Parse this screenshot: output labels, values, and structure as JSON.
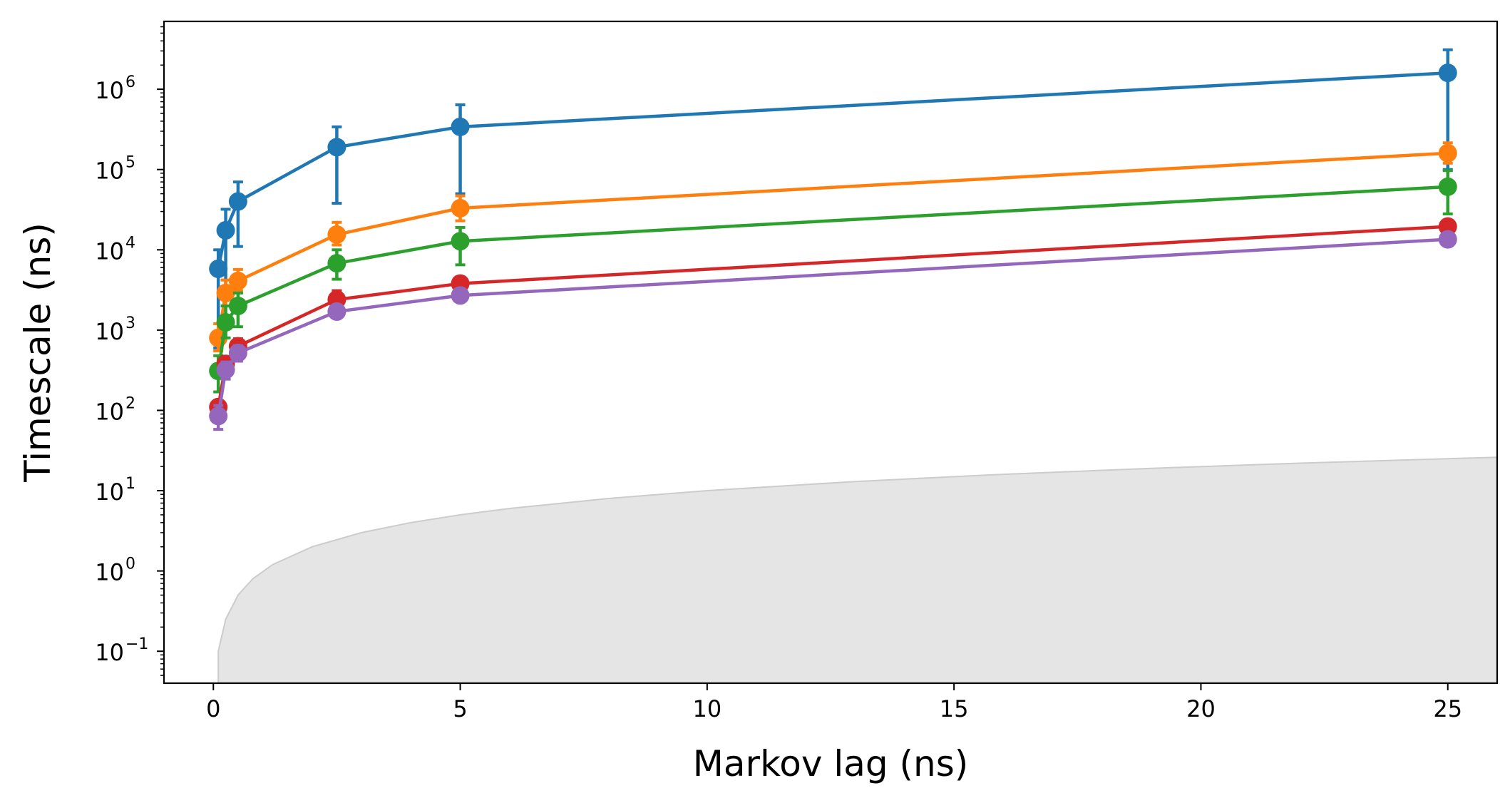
{
  "chart_data": {
    "type": "line",
    "xlabel": "Markov lag (ns)",
    "ylabel": "Timescale (ns)",
    "xlim": [
      -1,
      26
    ],
    "ylim": [
      0.04,
      7000000
    ],
    "yscale": "log",
    "grid": false,
    "x_ticks": [
      {
        "value": 0,
        "label": "0"
      },
      {
        "value": 5,
        "label": "5"
      },
      {
        "value": 10,
        "label": "10"
      },
      {
        "value": 15,
        "label": "15"
      },
      {
        "value": 20,
        "label": "20"
      },
      {
        "value": 25,
        "label": "25"
      }
    ],
    "y_ticks": [
      {
        "value": 0.1,
        "base": "10",
        "exp": "−1"
      },
      {
        "value": 1,
        "base": "10",
        "exp": "0"
      },
      {
        "value": 10,
        "base": "10",
        "exp": "1"
      },
      {
        "value": 100,
        "base": "10",
        "exp": "2"
      },
      {
        "value": 1000,
        "base": "10",
        "exp": "3"
      },
      {
        "value": 10000,
        "base": "10",
        "exp": "4"
      },
      {
        "value": 100000,
        "base": "10",
        "exp": "5"
      },
      {
        "value": 1000000,
        "base": "10",
        "exp": "6"
      }
    ],
    "x": [
      0.1,
      0.25,
      0.5,
      2.5,
      5,
      25
    ],
    "series": [
      {
        "color": "#1f77b4",
        "values": [
          5800,
          17500,
          40000,
          190000,
          340000,
          1600000
        ],
        "err_low": [
          600,
          3000,
          11000,
          38000,
          50000,
          100000
        ],
        "err_high": [
          10000,
          32000,
          70000,
          340000,
          640000,
          3100000
        ]
      },
      {
        "color": "#ff7f0e",
        "values": [
          800,
          2900,
          4100,
          15500,
          33000,
          160000
        ],
        "err_low": [
          550,
          2000,
          3100,
          11500,
          23000,
          120000
        ],
        "err_high": [
          1200,
          4200,
          5700,
          22000,
          47000,
          215000
        ]
      },
      {
        "color": "#2ca02c",
        "values": [
          310,
          1250,
          2000,
          6800,
          12800,
          61000
        ],
        "err_low": [
          170,
          800,
          1100,
          4300,
          6500,
          28000
        ],
        "err_high": [
          480,
          2000,
          2900,
          10000,
          19000,
          97000
        ]
      },
      {
        "color": "#d62728",
        "values": [
          110,
          380,
          630,
          2400,
          3800,
          19500
        ],
        "err_low": [
          90,
          290,
          480,
          1900,
          3100,
          16500
        ],
        "err_high": [
          130,
          470,
          780,
          3100,
          4600,
          23000
        ]
      },
      {
        "color": "#9467bd",
        "values": [
          85,
          320,
          520,
          1700,
          2700,
          13500
        ],
        "err_low": [
          58,
          245,
          410,
          1450,
          2300,
          11500
        ],
        "err_high": [
          115,
          400,
          640,
          2000,
          3200,
          16000
        ]
      }
    ],
    "shaded_region": {
      "color": "#e5e5e5",
      "edge_color": "#cccccc",
      "description_x": [
        0.1,
        0.25,
        0.5,
        0.8,
        1.2,
        2,
        3,
        4,
        5,
        6,
        8,
        10,
        13,
        16,
        19,
        22,
        25,
        26
      ],
      "upper": [
        0.1,
        0.25,
        0.5,
        0.8,
        1.2,
        2,
        3,
        4,
        5,
        6,
        8,
        10,
        13,
        16,
        19,
        22,
        25,
        26
      ]
    }
  }
}
